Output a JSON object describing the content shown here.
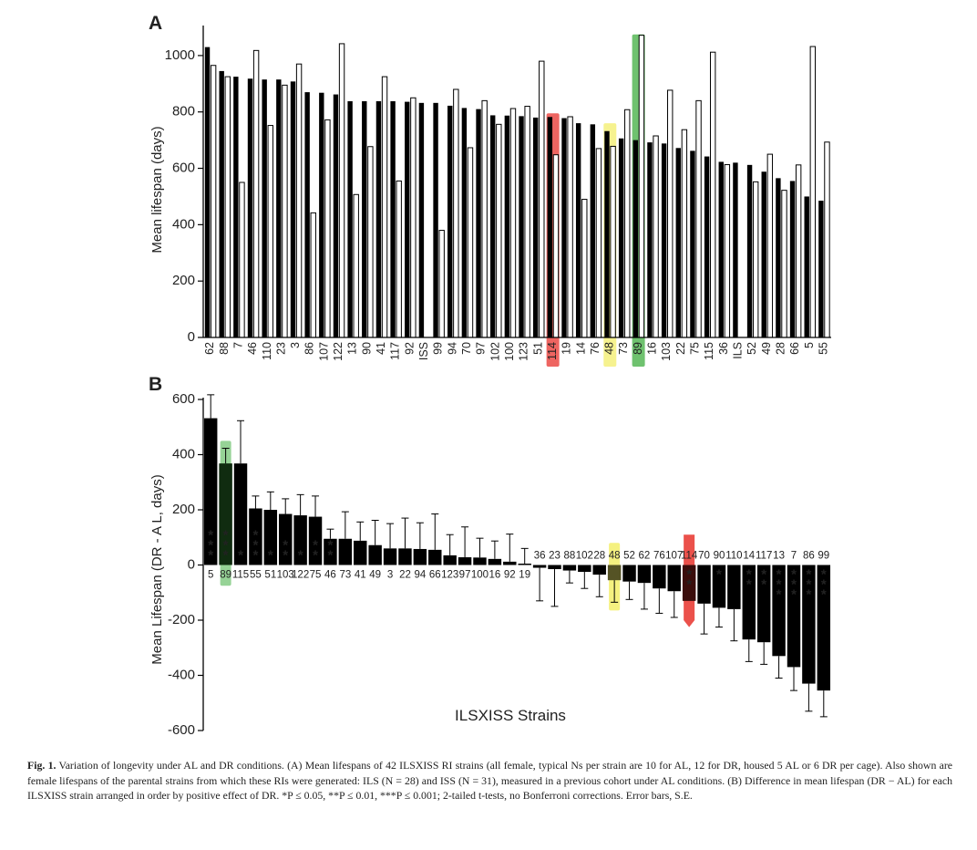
{
  "colors": {
    "al_bar": "#000000",
    "dr_bar": "#ffffff",
    "highlight_red": "#e8322c",
    "highlight_yellow": "#f3ee6a",
    "highlight_green": "#3fae3f"
  },
  "chart_data": [
    {
      "type": "bar",
      "panel_label": "A",
      "ylabel": "Mean lifespan (days)",
      "ylim": [
        0,
        1100
      ],
      "yticks": [
        0,
        200,
        400,
        600,
        800,
        1000
      ],
      "grid": false,
      "categories": [
        "62",
        "88",
        "7",
        "46",
        "110",
        "23",
        "3",
        "86",
        "107",
        "122",
        "13",
        "90",
        "41",
        "117",
        "92",
        "ISS",
        "99",
        "94",
        "70",
        "97",
        "102",
        "100",
        "123",
        "51",
        "114",
        "19",
        "14",
        "76",
        "48",
        "73",
        "89",
        "16",
        "103",
        "22",
        "75",
        "115",
        "36",
        "ILS",
        "52",
        "49",
        "28",
        "66",
        "5",
        "55"
      ],
      "series": [
        {
          "values": [
            1030,
            945,
            925,
            918,
            915,
            915,
            908,
            870,
            868,
            862,
            838,
            838,
            838,
            838,
            836,
            832,
            832,
            822,
            814,
            810,
            788,
            787,
            785,
            780,
            782,
            778,
            760,
            756,
            732,
            706,
            700,
            692,
            688,
            672,
            662,
            642,
            623,
            620,
            612,
            588,
            565,
            555,
            500,
            485
          ]
        },
        {
          "values": [
            965,
            925,
            550,
            1018,
            752,
            895,
            970,
            442,
            772,
            1042,
            507,
            677,
            925,
            555,
            850,
            null,
            380,
            880,
            673,
            840,
            756,
            812,
            820,
            980,
            648,
            783,
            490,
            670,
            678,
            808,
            1072,
            715,
            877,
            737,
            840,
            1012,
            613,
            null,
            552,
            650,
            522,
            612,
            1032,
            693
          ]
        }
      ],
      "highlights": [
        {
          "category": "114",
          "color": "red"
        },
        {
          "category": "48",
          "color": "yellow"
        },
        {
          "category": "89",
          "color": "green"
        }
      ]
    },
    {
      "type": "bar",
      "panel_label": "B",
      "ylabel": "Mean Lifespan  (DR - A L, days)",
      "xlabel": "ILSXISS Strains",
      "ylim": [
        -600,
        600
      ],
      "yticks": [
        -600,
        -400,
        -200,
        0,
        200,
        400,
        600
      ],
      "grid": false,
      "categories": [
        "5",
        "89",
        "115",
        "55",
        "51",
        "103",
        "122",
        "75",
        "46",
        "73",
        "41",
        "49",
        "3",
        "22",
        "94",
        "66",
        "123",
        "97",
        "100",
        "16",
        "92",
        "19",
        "36",
        "23",
        "88",
        "102",
        "28",
        "48",
        "52",
        "62",
        "76",
        "107",
        "114",
        "70",
        "90",
        "110",
        "14",
        "117",
        "13",
        "7",
        "86",
        "99"
      ],
      "values": [
        532,
        368,
        368,
        205,
        200,
        185,
        180,
        175,
        95,
        95,
        88,
        72,
        60,
        60,
        58,
        55,
        35,
        28,
        27,
        22,
        12,
        5,
        -10,
        -15,
        -20,
        -25,
        -35,
        -55,
        -60,
        -65,
        -85,
        -95,
        -130,
        -140,
        -155,
        -160,
        -270,
        -280,
        -330,
        -370,
        -430,
        -455
      ],
      "error": [
        85,
        55,
        155,
        45,
        65,
        55,
        75,
        75,
        35,
        98,
        68,
        90,
        90,
        110,
        95,
        130,
        75,
        110,
        70,
        65,
        100,
        55,
        120,
        135,
        45,
        60,
        80,
        80,
        65,
        95,
        90,
        95,
        0,
        110,
        70,
        115,
        80,
        80,
        80,
        85,
        100,
        95
      ],
      "significance": [
        "***",
        "***",
        "*",
        "***",
        "*",
        "**",
        "*",
        "**",
        "**",
        "",
        "",
        "",
        "",
        "",
        "",
        "",
        "",
        "",
        "",
        "",
        "",
        "",
        "",
        "",
        "",
        "",
        "",
        "",
        "",
        "",
        "",
        "",
        "**",
        "",
        "*",
        "",
        "**",
        "**",
        "***",
        "***",
        "***",
        "***"
      ],
      "highlights": [
        {
          "category": "89",
          "color": "green"
        },
        {
          "category": "48",
          "color": "yellow"
        },
        {
          "category": "114",
          "color": "red"
        }
      ]
    }
  ],
  "caption": {
    "label": "Fig. 1.",
    "text": "Variation of longevity under AL and DR conditions. (A) Mean lifespans of 42 ILSXISS RI strains (all female, typical Ns per strain are 10 for AL, 12 for DR, housed 5 AL or 6 DR per cage). Also shown are female lifespans of the parental strains from which these RIs were generated: ILS (N = 28) and ISS (N = 31), measured in a previous cohort under AL conditions. (B) Difference in mean lifespan (DR − AL) for each ILSXISS strain arranged in order by positive effect of DR. *P ≤ 0.05, **P ≤ 0.01, ***P ≤ 0.001; 2-tailed t-tests, no Bonferroni corrections. Error bars, S.E."
  }
}
